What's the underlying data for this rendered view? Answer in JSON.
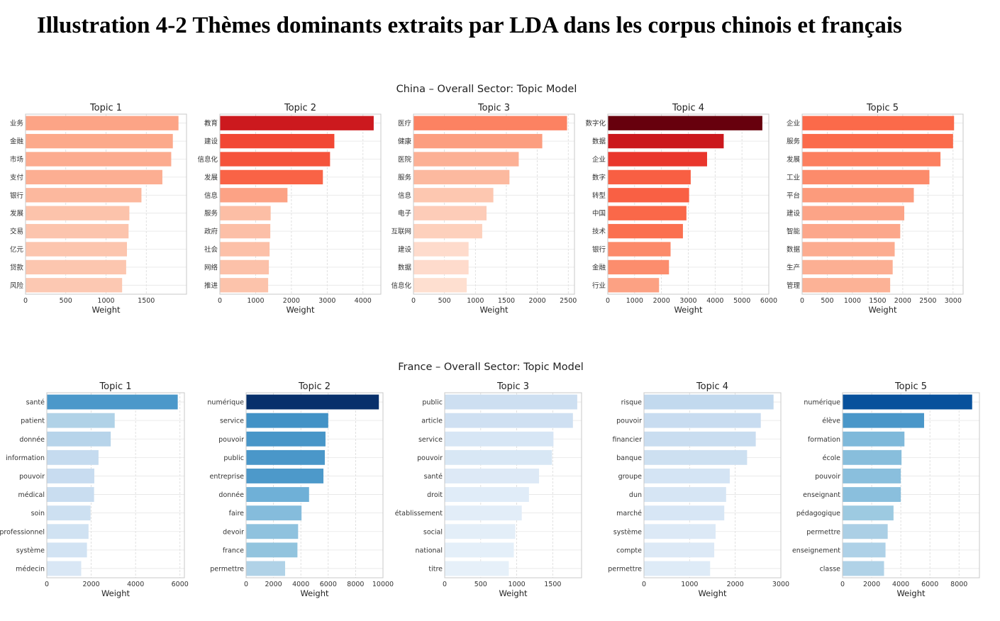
{
  "page_title": "Illustration 4-2 Thèmes dominants extraits par LDA dans les corpus chinois et français",
  "chart_data": [
    {
      "type": "bar",
      "title": "China – Overall Sector: Topic Model",
      "xlabel": "Weight",
      "grid": true,
      "colormap": "Reds",
      "panels": [
        {
          "title": "Topic 1",
          "xlim": [
            0,
            2000
          ],
          "xticks": [
            0,
            500,
            1000,
            1500
          ],
          "categories": [
            "业务",
            "金融",
            "市场",
            "支付",
            "银行",
            "发展",
            "交易",
            "亿元",
            "贷款",
            "风险"
          ],
          "values": [
            1900,
            1830,
            1810,
            1700,
            1440,
            1290,
            1280,
            1260,
            1250,
            1200
          ],
          "colors": [
            "#fca486",
            "#fca98b",
            "#fcab8f",
            "#fcae92",
            "#fcb89e",
            "#fcc3ab",
            "#fcc4ad",
            "#fcc5ae",
            "#fcc6af",
            "#fcc8b2"
          ]
        },
        {
          "title": "Topic 2",
          "xlim": [
            0,
            4500
          ],
          "xticks": [
            0,
            1000,
            2000,
            3000,
            4000
          ],
          "categories": [
            "教育",
            "建设",
            "信息化",
            "发展",
            "信息",
            "服务",
            "政府",
            "社会",
            "网络",
            "推进"
          ],
          "values": [
            4300,
            3200,
            3080,
            2880,
            1890,
            1420,
            1410,
            1390,
            1370,
            1350
          ],
          "colors": [
            "#cc191e",
            "#f24734",
            "#f5533b",
            "#f96346",
            "#fca285",
            "#fcbea5",
            "#fcbfa7",
            "#fcc0a8",
            "#fcc1a9",
            "#fcc3ab"
          ]
        },
        {
          "title": "Topic 3",
          "xlim": [
            0,
            2600
          ],
          "xticks": [
            0,
            500,
            1000,
            1500,
            2000,
            2500
          ],
          "categories": [
            "医疗",
            "健康",
            "医院",
            "服务",
            "信息",
            "电子",
            "互联网",
            "建设",
            "数据",
            "信息化"
          ],
          "values": [
            2480,
            2080,
            1700,
            1550,
            1290,
            1180,
            1110,
            890,
            890,
            860
          ],
          "colors": [
            "#fc8262",
            "#fc9e80",
            "#fcb095",
            "#fcb99f",
            "#fdc7b0",
            "#fdccb8",
            "#fdd0bc",
            "#fedbcc",
            "#fedbcc",
            "#fedfd0"
          ]
        },
        {
          "title": "Topic 4",
          "xlim": [
            0,
            6000
          ],
          "xticks": [
            0,
            1000,
            2000,
            3000,
            4000,
            5000,
            6000
          ],
          "categories": [
            "数字化",
            "数据",
            "企业",
            "数字",
            "转型",
            "中国",
            "技术",
            "银行",
            "金融",
            "行业"
          ],
          "values": [
            5760,
            4320,
            3700,
            3090,
            3030,
            2930,
            2800,
            2340,
            2280,
            1910
          ],
          "colors": [
            "#67000d",
            "#cb181d",
            "#e9362c",
            "#f85f43",
            "#f96044",
            "#fa6849",
            "#fb7050",
            "#fc8a6a",
            "#fc8d6d",
            "#fca183"
          ]
        },
        {
          "title": "Topic 5",
          "xlim": [
            0,
            3200
          ],
          "xticks": [
            0,
            500,
            1000,
            1500,
            2000,
            2500,
            3000
          ],
          "categories": [
            "企业",
            "服务",
            "发展",
            "工业",
            "平台",
            "建设",
            "智能",
            "数据",
            "生产",
            "管理"
          ],
          "values": [
            3020,
            3000,
            2750,
            2530,
            2220,
            2030,
            1950,
            1840,
            1800,
            1750
          ],
          "colors": [
            "#fb6a4a",
            "#fb6b4b",
            "#fc7f5f",
            "#fc8b6b",
            "#fc9b7c",
            "#fca487",
            "#fca78b",
            "#fcac90",
            "#fcaf93",
            "#fcb296"
          ]
        }
      ]
    },
    {
      "type": "bar",
      "title": "France – Overall Sector: Topic Model",
      "xlabel": "Weight",
      "grid": true,
      "colormap": "Blues",
      "panels": [
        {
          "title": "Topic 1",
          "xlim": [
            0,
            6200
          ],
          "xticks": [
            0,
            2000,
            4000,
            6000
          ],
          "categories": [
            "santé",
            "patient",
            "donnée",
            "information",
            "pouvoir",
            "médical",
            "soin",
            "professionnel",
            "système",
            "médecin"
          ],
          "values": [
            5900,
            3060,
            2880,
            2330,
            2140,
            2130,
            1970,
            1880,
            1810,
            1550
          ],
          "colors": [
            "#4b98ca",
            "#b0d2e7",
            "#b7d4ea",
            "#c5dbef",
            "#c8dcf0",
            "#c9ddf0",
            "#cde0f1",
            "#d0e2f2",
            "#d2e3f3",
            "#d9e7f5"
          ]
        },
        {
          "title": "Topic 2",
          "xlim": [
            0,
            10000
          ],
          "xticks": [
            0,
            2000,
            4000,
            6000,
            8000,
            10000
          ],
          "categories": [
            "numérique",
            "service",
            "pouvoir",
            "public",
            "entreprise",
            "donnée",
            "faire",
            "devoir",
            "france",
            "permettre"
          ],
          "values": [
            9700,
            6000,
            5800,
            5750,
            5650,
            4600,
            4050,
            3800,
            3750,
            2850
          ],
          "colors": [
            "#08306b",
            "#4292c6",
            "#4896c8",
            "#4a97c9",
            "#4d99ca",
            "#6fb0d7",
            "#85bcdc",
            "#8fc2de",
            "#92c4de",
            "#b0d2e7"
          ]
        },
        {
          "title": "Topic 3",
          "xlim": [
            0,
            1900
          ],
          "xticks": [
            0,
            500,
            1000,
            1500
          ],
          "categories": [
            "public",
            "article",
            "service",
            "pouvoir",
            "santé",
            "droit",
            "établissement",
            "social",
            "national",
            "titre"
          ],
          "values": [
            1840,
            1780,
            1510,
            1490,
            1310,
            1170,
            1070,
            980,
            960,
            890
          ],
          "colors": [
            "#cddff1",
            "#cfe0f2",
            "#d7e6f5",
            "#d8e7f5",
            "#dde9f6",
            "#e0ecf8",
            "#e2edf8",
            "#e3eef8",
            "#e4eff9",
            "#e6f0f9"
          ]
        },
        {
          "title": "Topic 4",
          "xlim": [
            0,
            3000
          ],
          "xticks": [
            0,
            1000,
            2000,
            3000
          ],
          "categories": [
            "risque",
            "pouvoir",
            "financier",
            "banque",
            "groupe",
            "dun",
            "marché",
            "système",
            "compte",
            "permettre"
          ],
          "values": [
            2840,
            2560,
            2450,
            2260,
            1880,
            1800,
            1760,
            1570,
            1540,
            1450
          ],
          "colors": [
            "#c2d9ee",
            "#c8dcf0",
            "#c9ddf0",
            "#cde0f1",
            "#d4e4f4",
            "#d6e5f4",
            "#d7e6f5",
            "#dce9f6",
            "#dce9f6",
            "#deebf7"
          ]
        },
        {
          "title": "Topic 5",
          "xlim": [
            0,
            9400
          ],
          "xticks": [
            0,
            2000,
            4000,
            6000,
            8000
          ],
          "categories": [
            "numérique",
            "élève",
            "formation",
            "école",
            "pouvoir",
            "enseignant",
            "pédagogique",
            "permettre",
            "enseignement",
            "classe"
          ],
          "values": [
            8900,
            5600,
            4250,
            4050,
            4000,
            4000,
            3500,
            3100,
            2950,
            2850
          ],
          "colors": [
            "#08519c",
            "#4a97c9",
            "#7fb9da",
            "#88bedc",
            "#8abfdd",
            "#8abfdd",
            "#9dcae1",
            "#abcfe5",
            "#aed1e7",
            "#b0d2e7"
          ]
        }
      ]
    }
  ]
}
